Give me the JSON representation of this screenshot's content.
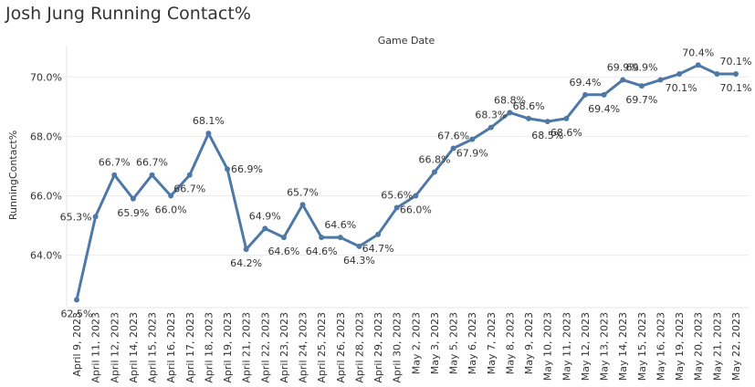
{
  "title": "Josh Jung Running Contact%",
  "chart_data": {
    "type": "line",
    "title": "Josh Jung Running Contact%",
    "header_label": "Game Date",
    "ylabel": "RunningContact%",
    "xlabel": "",
    "ylim": [
      62.3,
      70.9
    ],
    "yticks": [
      64.0,
      66.0,
      68.0,
      70.0
    ],
    "ytick_labels": [
      "64.0%",
      "66.0%",
      "68.0%",
      "70.0%"
    ],
    "grid": true,
    "line_color": "#4e79a7",
    "categories": [
      "April 9, 2023",
      "April 11, 2023",
      "April 12, 2023",
      "April 14, 2023",
      "April 15, 2023",
      "April 16, 2023",
      "April 17, 2023",
      "April 18, 2023",
      "April 19, 2023",
      "April 21, 2023",
      "April 22, 2023",
      "April 23, 2023",
      "April 24, 2023",
      "April 25, 2023",
      "April 26, 2023",
      "April 28, 2023",
      "April 29, 2023",
      "April 30, 2023",
      "May 2, 2023",
      "May 3, 2023",
      "May 5, 2023",
      "May 6, 2023",
      "May 7, 2023",
      "May 8, 2023",
      "May 9, 2023",
      "May 10, 2023",
      "May 11, 2023",
      "May 12, 2023",
      "May 13, 2023",
      "May 14, 2023",
      "May 15, 2023",
      "May 16, 2023",
      "May 19, 2023",
      "May 20, 2023",
      "May 21, 2023",
      "May 22, 2023"
    ],
    "values": [
      62.5,
      65.3,
      66.7,
      65.9,
      66.7,
      66.0,
      66.7,
      68.1,
      66.9,
      64.2,
      64.9,
      64.6,
      65.7,
      64.6,
      64.6,
      64.3,
      64.7,
      65.6,
      66.0,
      66.8,
      67.6,
      67.9,
      68.3,
      68.8,
      68.6,
      68.5,
      68.6,
      69.4,
      69.4,
      69.9,
      69.7,
      69.9,
      70.1,
      70.4,
      70.1,
      70.1
    ],
    "data_labels": [
      {
        "index": 0,
        "text": "62.5%",
        "pos": "below"
      },
      {
        "index": 1,
        "text": "65.3%",
        "pos": "left"
      },
      {
        "index": 2,
        "text": "66.7%",
        "pos": "above"
      },
      {
        "index": 3,
        "text": "65.9%",
        "pos": "below"
      },
      {
        "index": 4,
        "text": "66.7%",
        "pos": "above"
      },
      {
        "index": 5,
        "text": "66.0%",
        "pos": "below"
      },
      {
        "index": 6,
        "text": "66.7%",
        "pos": "below"
      },
      {
        "index": 7,
        "text": "68.1%",
        "pos": "above"
      },
      {
        "index": 8,
        "text": "66.9%",
        "pos": "right"
      },
      {
        "index": 9,
        "text": "64.2%",
        "pos": "below"
      },
      {
        "index": 10,
        "text": "64.9%",
        "pos": "above"
      },
      {
        "index": 11,
        "text": "64.6%",
        "pos": "below"
      },
      {
        "index": 12,
        "text": "65.7%",
        "pos": "above"
      },
      {
        "index": 13,
        "text": "64.6%",
        "pos": "below"
      },
      {
        "index": 14,
        "text": "64.6%",
        "pos": "above"
      },
      {
        "index": 15,
        "text": "64.3%",
        "pos": "below"
      },
      {
        "index": 16,
        "text": "64.7%",
        "pos": "below"
      },
      {
        "index": 17,
        "text": "65.6%",
        "pos": "above"
      },
      {
        "index": 18,
        "text": "66.0%",
        "pos": "below"
      },
      {
        "index": 19,
        "text": "66.8%",
        "pos": "above"
      },
      {
        "index": 20,
        "text": "67.6%",
        "pos": "above"
      },
      {
        "index": 21,
        "text": "67.9%",
        "pos": "below"
      },
      {
        "index": 22,
        "text": "68.3%",
        "pos": "above"
      },
      {
        "index": 23,
        "text": "68.8%",
        "pos": "above"
      },
      {
        "index": 25,
        "text": "68.5%",
        "pos": "below"
      },
      {
        "index": 24,
        "text": "68.6%",
        "pos": "above"
      },
      {
        "index": 26,
        "text": "68.6%",
        "pos": "below"
      },
      {
        "index": 27,
        "text": "69.4%",
        "pos": "above"
      },
      {
        "index": 28,
        "text": "69.4%",
        "pos": "below"
      },
      {
        "index": 29,
        "text": "69.9%",
        "pos": "above"
      },
      {
        "index": 30,
        "text": "69.7%",
        "pos": "below"
      },
      {
        "index": 31,
        "text": "69.9%",
        "pos": "aboveleft"
      },
      {
        "index": 33,
        "text": "70.4%",
        "pos": "above"
      },
      {
        "index": 32,
        "text": "70.1%",
        "pos": "belowright"
      },
      {
        "index": 35,
        "text": "70.1%",
        "pos": "above"
      },
      {
        "index": 35,
        "text": "70.1%",
        "pos": "below"
      }
    ]
  }
}
